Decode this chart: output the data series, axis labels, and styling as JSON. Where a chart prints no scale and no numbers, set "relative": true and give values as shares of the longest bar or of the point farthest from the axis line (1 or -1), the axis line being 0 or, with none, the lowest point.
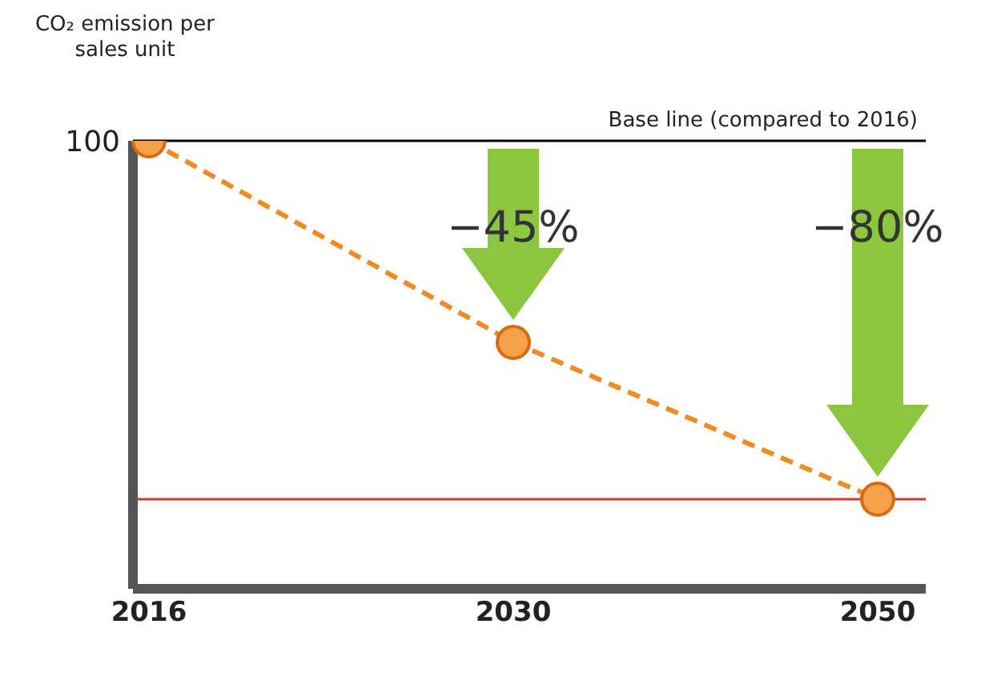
{
  "chart_data": {
    "type": "line",
    "ylabel": "CO₂ emission per sales unit",
    "categories": [
      "2016",
      "2030",
      "2050"
    ],
    "series": [
      {
        "color": "#f08a24",
        "values": [
          1,
          0.55,
          0.2
        ]
      }
    ],
    "relative": true,
    "marker": "circle",
    "line_style": "dashed",
    "grid": false,
    "legend": false,
    "ref_lines": [
      {
        "axis": "y",
        "value": 1,
        "label": "Base line (compared to 2016)",
        "color": "#000000"
      },
      {
        "axis": "y",
        "value": 0.2,
        "color": "#e03030"
      }
    ],
    "annotations": [
      {
        "text": "100",
        "x": "2016",
        "y": 1
      },
      "−45%",
      "−80%"
    ]
  }
}
